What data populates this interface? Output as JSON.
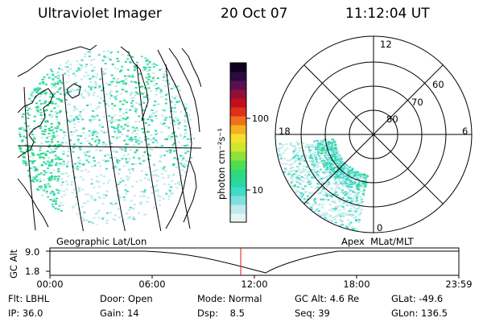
{
  "header": {
    "instrument": "Ultraviolet Imager",
    "date": "20 Oct 07",
    "time": "11:12:04 UT"
  },
  "colorbar": {
    "unit_label": "photon cm⁻²s⁻¹",
    "ticks": [
      {
        "label": "100",
        "value": 100
      },
      {
        "label": "10",
        "value": 10
      }
    ],
    "colors": [
      "#e8f4f4",
      "#bfe9ea",
      "#7fdedf",
      "#3fdcc8",
      "#29d8a0",
      "#2fd87a",
      "#4ce050",
      "#8ee23a",
      "#cfe62e",
      "#f4e02a",
      "#f6b020",
      "#f07018",
      "#e03018",
      "#c01020",
      "#901038",
      "#5a1050",
      "#2a0a40",
      "#100020"
    ]
  },
  "geo_map": {
    "label": "Geographic Lat/Lon",
    "colors": {
      "green": "#2ed88a",
      "teal": "#45d8c8",
      "light": "#bfeaea"
    }
  },
  "polar": {
    "label": "Apex  MLat/MLT",
    "mlt_labels": [
      {
        "label": "12",
        "pos": "top"
      },
      {
        "label": "18",
        "pos": "left"
      },
      {
        "label": "6",
        "pos": "right"
      },
      {
        "label": "0",
        "pos": "bottom"
      }
    ],
    "lat_labels": [
      "60",
      "70",
      "80"
    ]
  },
  "altitude_strip": {
    "ylabel": "GC Alt",
    "y_ticks": [
      "9.0",
      "1.8"
    ],
    "x_ticks": [
      "00:00",
      "06:00",
      "12:00",
      "18:00",
      "23:59"
    ],
    "current_time_hours": 11.2
  },
  "status": {
    "flt": {
      "label": "Flt:",
      "value": "LBHL"
    },
    "ip": {
      "label": "IP:",
      "value": "36.0"
    },
    "door": {
      "label": "Door:",
      "value": "Open"
    },
    "gain": {
      "label": "Gain:",
      "value": "14"
    },
    "mode": {
      "label": "Mode:",
      "value": "Normal"
    },
    "dsp": {
      "label": "Dsp:",
      "value": "8.5"
    },
    "gcalt": {
      "label": "GC Alt:",
      "value": "4.6 Re"
    },
    "seq": {
      "label": "Seq:",
      "value": "39"
    },
    "glat": {
      "label": "GLat:",
      "value": "-49.6"
    },
    "glon": {
      "label": "GLon:",
      "value": "136.5"
    }
  }
}
